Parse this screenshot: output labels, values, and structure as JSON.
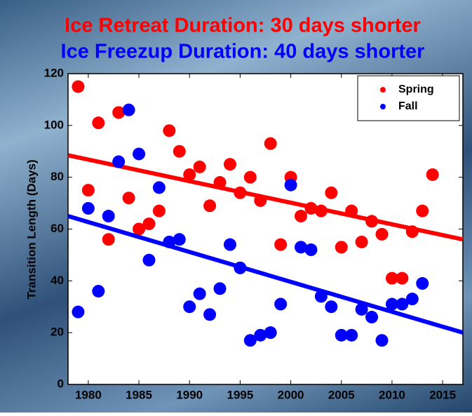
{
  "chart_data": {
    "type": "scatter",
    "title": "Ice Retreat Duration: 30 days shorter",
    "subtitle": "Ice Freezup Duration: 40 days shorter",
    "y_label": "Transition Length (Days)",
    "xlim": [
      1978,
      2017
    ],
    "xticks": [
      1980,
      1985,
      1990,
      1995,
      2000,
      2005,
      2010,
      2015
    ],
    "ylim": [
      0,
      120
    ],
    "yticks": [
      0,
      20,
      40,
      60,
      80,
      100,
      120
    ],
    "legend": "upper right",
    "series": [
      {
        "name": "Spring",
        "color": "#ff0000",
        "x": [
          1979,
          1980,
          1981,
          1982,
          1983,
          1984,
          1985,
          1986,
          1987,
          1988,
          1989,
          1990,
          1991,
          1992,
          1993,
          1994,
          1995,
          1996,
          1997,
          1998,
          1999,
          2000,
          2001,
          2002,
          2003,
          2004,
          2005,
          2006,
          2007,
          2008,
          2009,
          2010,
          2011,
          2012,
          2013,
          2014
        ],
        "values": [
          115,
          75,
          101,
          56,
          105,
          72,
          60,
          62,
          67,
          98,
          90,
          81,
          84,
          69,
          78,
          85,
          74,
          80,
          71,
          93,
          54,
          80,
          65,
          68,
          67,
          74,
          53,
          67,
          55,
          63,
          58,
          41,
          41,
          59,
          67,
          81
        ],
        "trend": {
          "x": [
            1978,
            2017
          ],
          "y": [
            88.5,
            56
          ]
        }
      },
      {
        "name": "Fall",
        "color": "#0000ff",
        "x": [
          1979,
          1980,
          1981,
          1982,
          1983,
          1984,
          1985,
          1986,
          1987,
          1988,
          1989,
          1990,
          1991,
          1992,
          1993,
          1994,
          1995,
          1996,
          1997,
          1998,
          1999,
          2000,
          2001,
          2002,
          2003,
          2004,
          2005,
          2006,
          2007,
          2008,
          2009,
          2010,
          2011,
          2012,
          2013
        ],
        "values": [
          28,
          68,
          36,
          65,
          86,
          106,
          89,
          48,
          76,
          55,
          56,
          30,
          35,
          27,
          37,
          54,
          45,
          17,
          19,
          20,
          31,
          77,
          53,
          52,
          34,
          30,
          19,
          19,
          29,
          26,
          17,
          31,
          31,
          33,
          39
        ],
        "trend": {
          "x": [
            1978,
            2017
          ],
          "y": [
            65,
            20
          ]
        }
      }
    ]
  }
}
